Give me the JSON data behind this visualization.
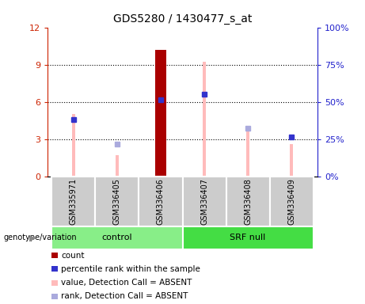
{
  "title": "GDS5280 / 1430477_s_at",
  "samples": [
    "GSM335971",
    "GSM336405",
    "GSM336406",
    "GSM336407",
    "GSM336408",
    "GSM336409"
  ],
  "count_values": [
    0,
    0,
    10.2,
    0,
    0,
    0
  ],
  "count_color": "#aa0000",
  "percentile_rank_values": [
    4.6,
    0,
    6.2,
    6.6,
    0,
    3.2
  ],
  "percentile_rank_color": "#3333cc",
  "value_absent_values": [
    5.0,
    1.7,
    0,
    9.2,
    3.8,
    2.6
  ],
  "value_absent_color": "#ffbbbb",
  "rank_absent_values": [
    0,
    2.6,
    0,
    0,
    3.9,
    0
  ],
  "rank_absent_color": "#aaaadd",
  "ylim_left": [
    0,
    12
  ],
  "ylim_right": [
    0,
    100
  ],
  "yticks_left": [
    0,
    3,
    6,
    9,
    12
  ],
  "ytick_labels_left": [
    "0",
    "3",
    "6",
    "9",
    "12"
  ],
  "yticks_right": [
    0,
    25,
    50,
    75,
    100
  ],
  "ytick_labels_right": [
    "0%",
    "25%",
    "50%",
    "75%",
    "100%"
  ],
  "left_axis_color": "#cc2200",
  "right_axis_color": "#2222cc",
  "control_color": "#88ee88",
  "srfnull_color": "#44dd44",
  "background_color": "#ffffff",
  "plot_bg_color": "#ffffff",
  "thin_bar_width": 0.08,
  "count_bar_width": 0.25,
  "rank_marker_size": 4,
  "legend_items": [
    {
      "label": "count",
      "color": "#aa0000"
    },
    {
      "label": "percentile rank within the sample",
      "color": "#3333cc"
    },
    {
      "label": "value, Detection Call = ABSENT",
      "color": "#ffbbbb"
    },
    {
      "label": "rank, Detection Call = ABSENT",
      "color": "#aaaadd"
    }
  ]
}
